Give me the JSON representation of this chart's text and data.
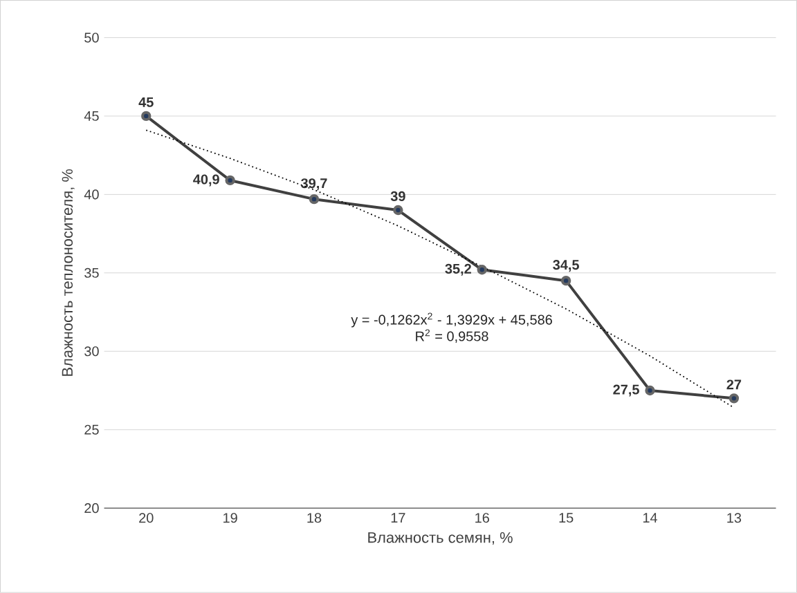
{
  "chart_data": {
    "type": "line",
    "xlabel": "Влажность семян, %",
    "ylabel": "Влажность теплоносителя, %",
    "categories": [
      "20",
      "19",
      "18",
      "17",
      "16",
      "15",
      "14",
      "13"
    ],
    "series": [
      {
        "color": "#404040",
        "values": [
          45,
          40.9,
          39.7,
          39,
          35.2,
          34.5,
          27.5,
          27
        ],
        "value_labels": [
          "45",
          "40,9",
          "39,7",
          "39",
          "35,2",
          "34,5",
          "27,5",
          "27"
        ],
        "marker": "circle",
        "line_style": "solid"
      },
      {
        "type": "line",
        "color": "#000000",
        "x": [
          "20",
          "19",
          "18",
          "17",
          "16",
          "15",
          "14",
          "13"
        ],
        "values": [
          44.1,
          42.3,
          40.3,
          38.0,
          35.4,
          32.7,
          29.7,
          26.4
        ],
        "marker": "none",
        "line_style": "dotted"
      }
    ],
    "ylim": [
      20,
      50
    ],
    "yticks": [
      20,
      25,
      30,
      35,
      40,
      45,
      50
    ],
    "grid": "y",
    "annotations": [
      "y = -0,1262x$^{2}$ - 1,3929x + 45,586",
      "R$^{2}$ = 0,9558"
    ]
  }
}
